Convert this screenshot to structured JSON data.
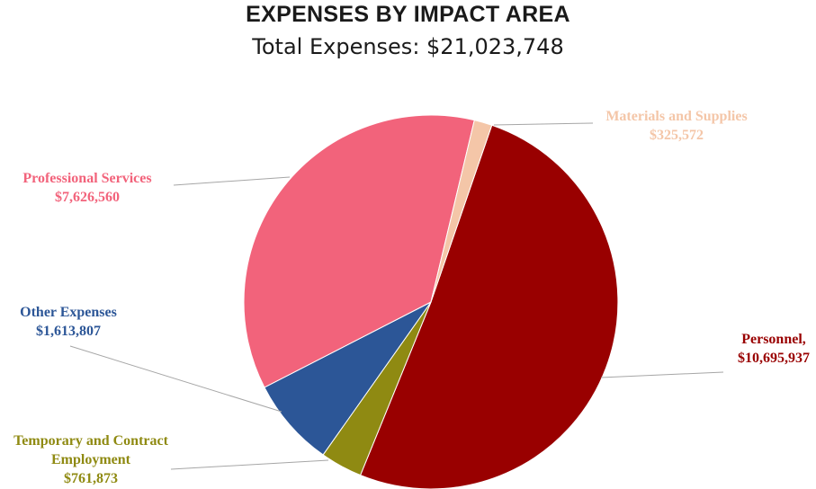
{
  "header": {
    "title": "EXPENSES BY IMPACT AREA",
    "subtitle": "Total Expenses: $21,023,748"
  },
  "chart_data": {
    "type": "pie",
    "title": "EXPENSES BY IMPACT AREA",
    "subtitle": "Total Expenses: $21,023,748",
    "total": 21023748,
    "slices": [
      {
        "name": "Personnel",
        "value": 10695937,
        "color": "#990000",
        "label_lines": [
          "Personnel,",
          "$10,695,937"
        ]
      },
      {
        "name": "Temporary and Contract Employment",
        "value": 761873,
        "color": "#8f8a12",
        "label_lines": [
          "Temporary and Contract",
          "Employment",
          "$761,873"
        ]
      },
      {
        "name": "Other Expenses",
        "value": 1613807,
        "color": "#2c5697",
        "label_lines": [
          "Other Expenses",
          "$1,613,807"
        ]
      },
      {
        "name": "Professional Services",
        "value": 7626560,
        "color": "#f2637b",
        "label_lines": [
          "Professional Services",
          "$7,626,560"
        ]
      },
      {
        "name": "Materials and Supplies",
        "value": 325572,
        "color": "#f4c6a8",
        "label_lines": [
          "Materials and Supplies",
          "$325,572"
        ]
      }
    ],
    "start_angle_deg": 19,
    "direction": "clockwise",
    "leader_line_color": "#a6a6a6"
  }
}
